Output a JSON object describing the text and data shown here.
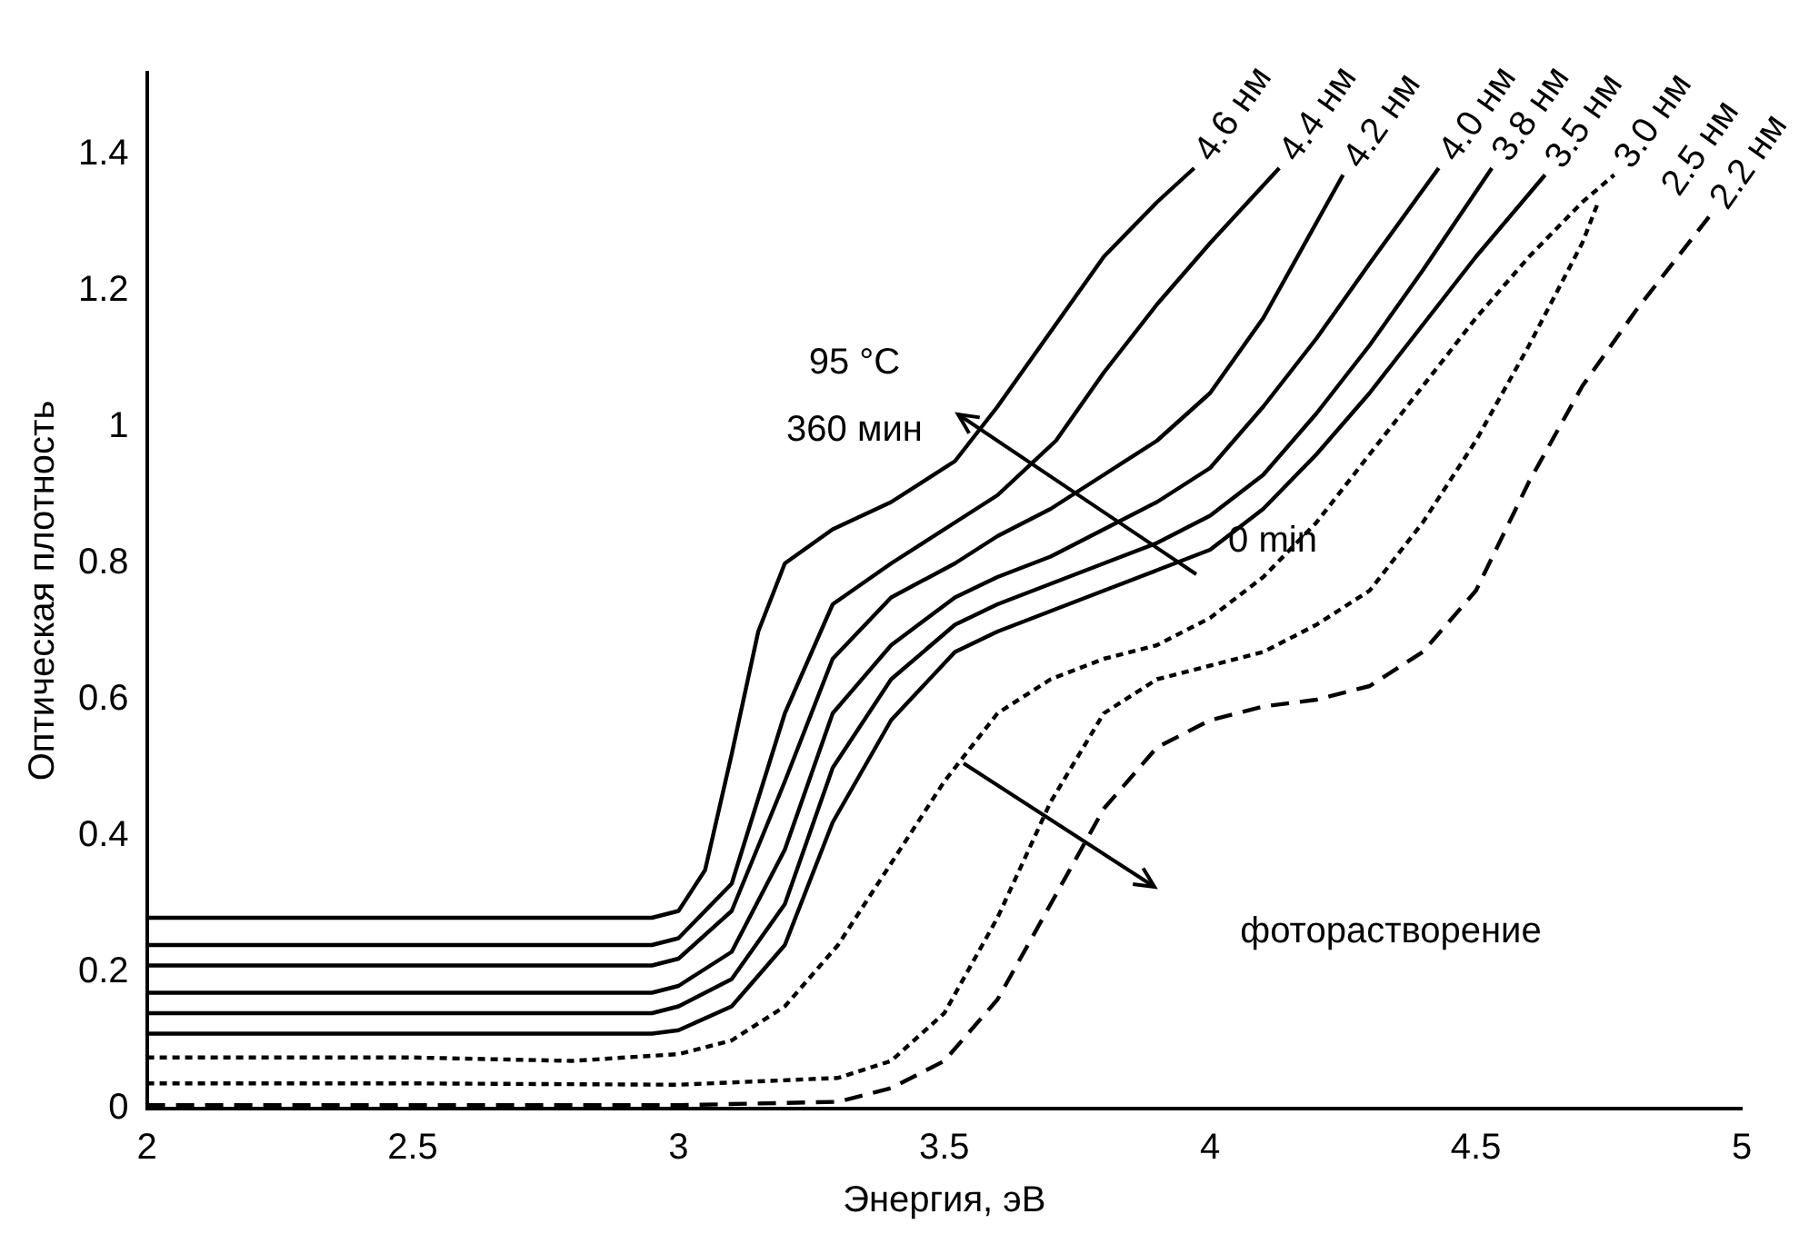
{
  "chart_data": {
    "type": "line",
    "xlabel": "Энергия, эВ",
    "ylabel": "Оптическая плотность",
    "xlim": [
      2,
      5
    ],
    "xticks": [
      2,
      2.5,
      3,
      3.5,
      4,
      4.5,
      5
    ],
    "ylim": [
      0,
      1.52
    ],
    "yticks": [
      0,
      0.2,
      0.4,
      0.6,
      0.8,
      1.0,
      1.2,
      1.4
    ],
    "grid": false,
    "legend": false,
    "marker": "none",
    "series": [
      {
        "name": "4.6 нм",
        "color": "#000000",
        "line_style": "solid",
        "x": [
          2,
          2.5,
          2.95,
          3,
          3.05,
          3.1,
          3.15,
          3.2,
          3.29,
          3.4,
          3.52,
          3.6,
          3.7,
          3.8,
          3.9,
          3.97
        ],
        "values": [
          0.28,
          0.28,
          0.28,
          0.29,
          0.35,
          0.52,
          0.7,
          0.8,
          0.85,
          0.89,
          0.95,
          1.03,
          1.14,
          1.25,
          1.33,
          1.38
        ]
      },
      {
        "name": "4.4 нм",
        "color": "#000000",
        "line_style": "solid",
        "x": [
          2,
          2.5,
          2.95,
          3,
          3.1,
          3.2,
          3.29,
          3.4,
          3.52,
          3.6,
          3.71,
          3.8,
          3.9,
          4,
          4.13
        ],
        "values": [
          0.24,
          0.24,
          0.24,
          0.25,
          0.33,
          0.58,
          0.74,
          0.8,
          0.86,
          0.9,
          0.98,
          1.08,
          1.18,
          1.27,
          1.38
        ]
      },
      {
        "name": "4.2 нм",
        "color": "#000000",
        "line_style": "solid",
        "x": [
          2,
          2.5,
          2.95,
          3,
          3.1,
          3.2,
          3.29,
          3.4,
          3.52,
          3.6,
          3.7,
          3.8,
          3.9,
          4,
          4.1,
          4.2,
          4.25
        ],
        "values": [
          0.21,
          0.21,
          0.21,
          0.22,
          0.29,
          0.48,
          0.66,
          0.75,
          0.8,
          0.84,
          0.88,
          0.93,
          0.98,
          1.05,
          1.16,
          1.3,
          1.37
        ]
      },
      {
        "name": "4.0 нм",
        "color": "#000000",
        "line_style": "solid",
        "x": [
          2,
          2.5,
          2.95,
          3,
          3.1,
          3.2,
          3.29,
          3.4,
          3.52,
          3.6,
          3.7,
          3.8,
          3.9,
          4,
          4.1,
          4.2,
          4.3,
          4.43
        ],
        "values": [
          0.17,
          0.17,
          0.17,
          0.18,
          0.23,
          0.38,
          0.58,
          0.68,
          0.75,
          0.78,
          0.81,
          0.85,
          0.89,
          0.94,
          1.03,
          1.13,
          1.24,
          1.38
        ]
      },
      {
        "name": "3.8 нм",
        "color": "#000000",
        "line_style": "solid",
        "x": [
          2,
          2.5,
          2.95,
          3,
          3.1,
          3.2,
          3.29,
          3.4,
          3.52,
          3.6,
          3.7,
          3.8,
          3.9,
          4,
          4.1,
          4.2,
          4.3,
          4.4,
          4.53
        ],
        "values": [
          0.14,
          0.14,
          0.14,
          0.15,
          0.19,
          0.3,
          0.5,
          0.63,
          0.71,
          0.74,
          0.77,
          0.8,
          0.83,
          0.87,
          0.93,
          1.02,
          1.12,
          1.23,
          1.38
        ]
      },
      {
        "name": "3.5 нм",
        "color": "#000000",
        "line_style": "solid",
        "x": [
          2,
          2.5,
          2.95,
          3,
          3.1,
          3.2,
          3.29,
          3.4,
          3.52,
          3.6,
          3.7,
          3.8,
          3.9,
          4,
          4.1,
          4.2,
          4.3,
          4.4,
          4.5,
          4.63
        ],
        "values": [
          0.11,
          0.11,
          0.11,
          0.115,
          0.15,
          0.24,
          0.42,
          0.57,
          0.67,
          0.7,
          0.73,
          0.76,
          0.79,
          0.82,
          0.88,
          0.96,
          1.05,
          1.15,
          1.25,
          1.37
        ]
      },
      {
        "name": "3.0 нм",
        "color": "#000000",
        "line_style": "dotted",
        "x": [
          2,
          2.5,
          2.8,
          3,
          3.1,
          3.2,
          3.3,
          3.4,
          3.5,
          3.6,
          3.7,
          3.8,
          3.9,
          4,
          4.1,
          4.2,
          4.3,
          4.4,
          4.5,
          4.6,
          4.7,
          4.76
        ],
        "values": [
          0.075,
          0.075,
          0.07,
          0.08,
          0.1,
          0.15,
          0.24,
          0.36,
          0.48,
          0.58,
          0.63,
          0.66,
          0.68,
          0.72,
          0.78,
          0.86,
          0.96,
          1.06,
          1.16,
          1.25,
          1.33,
          1.37
        ]
      },
      {
        "name": "2.5 нм",
        "color": "#000000",
        "line_style": "dotted",
        "x": [
          2,
          2.5,
          3,
          3.3,
          3.4,
          3.5,
          3.6,
          3.7,
          3.8,
          3.9,
          4,
          4.1,
          4.2,
          4.3,
          4.4,
          4.5,
          4.6,
          4.7,
          4.73
        ],
        "values": [
          0.037,
          0.037,
          0.035,
          0.045,
          0.07,
          0.14,
          0.28,
          0.45,
          0.58,
          0.63,
          0.65,
          0.67,
          0.71,
          0.76,
          0.86,
          0.98,
          1.12,
          1.27,
          1.33
        ]
      },
      {
        "name": "2.2 нм",
        "color": "#000000",
        "line_style": "dashed",
        "x": [
          2,
          2.5,
          3,
          3.3,
          3.4,
          3.5,
          3.6,
          3.7,
          3.8,
          3.9,
          4,
          4.1,
          4.2,
          4.3,
          4.4,
          4.5,
          4.6,
          4.7,
          4.8,
          4.94
        ],
        "values": [
          0.005,
          0.005,
          0.005,
          0.01,
          0.03,
          0.07,
          0.16,
          0.3,
          0.44,
          0.53,
          0.57,
          0.59,
          0.6,
          0.62,
          0.67,
          0.76,
          0.92,
          1.06,
          1.17,
          1.31
        ]
      }
    ],
    "annotations": [
      "95 °C",
      "360 мин",
      "0 min",
      "фоторастворение"
    ]
  }
}
